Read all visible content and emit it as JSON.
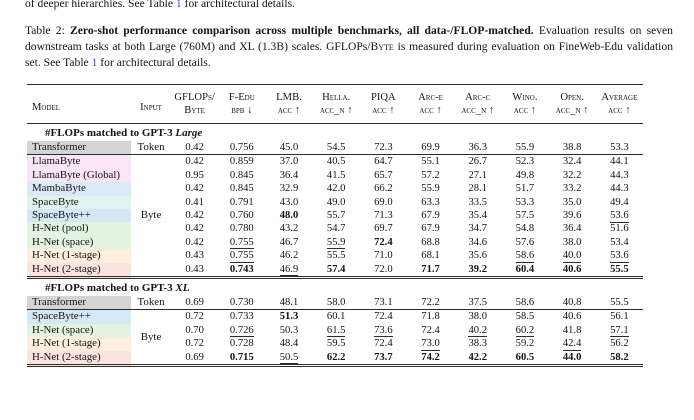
{
  "link_color": "#3355c8",
  "colors": {
    "gray": "#d4d4d4",
    "pink": "#fae5f6",
    "blue1": "#dceaf8",
    "teal": "#e1f3ee",
    "blue2": "#d6e8f5",
    "green": "#e2f3e0",
    "orange": "#fdeedd",
    "red": "#fbe3e0"
  },
  "body_text": {
    "line": [
      {
        "t": "of deeper hierarchies. See Table ",
        "s": ""
      },
      {
        "t": "1",
        "s": "link"
      },
      {
        "t": " for architectural details.",
        "s": ""
      }
    ]
  },
  "caption": {
    "segments": [
      {
        "t": "Table 2: ",
        "s": ""
      },
      {
        "t": "Zero-shot performance comparison across multiple benchmarks, all data-/FLOP-matched.",
        "s": "bold"
      },
      {
        "t": " Evaluation results on seven downstream tasks at both Large (760M) and XL (1.3B) scales. GFLOPs/",
        "s": ""
      },
      {
        "t": "Byte",
        "s": "sc"
      },
      {
        "t": " is measured during evaluation on FineWeb-Edu validation set. See Table ",
        "s": ""
      },
      {
        "t": "1",
        "s": "link"
      },
      {
        "t": " for architectural details.",
        "s": ""
      }
    ]
  },
  "table": {
    "header": {
      "model": "Model",
      "input": "Input",
      "metrics": [
        [
          "GFLOPs/",
          "Byte"
        ],
        [
          "F-Edu",
          "bpb ↓"
        ],
        [
          "LMB.",
          "acc ↑"
        ],
        [
          "Hella.",
          "acc_n ↑"
        ],
        [
          "PIQA",
          "acc ↑"
        ],
        [
          "Arc-e",
          "acc ↑"
        ],
        [
          "Arc-c",
          "acc_n ↑"
        ],
        [
          "Wino.",
          "acc ↑"
        ],
        [
          "Open.",
          "acc_n ↑"
        ],
        [
          "Average",
          "acc ↑"
        ]
      ]
    },
    "sections": [
      {
        "title_prefix": "#FLOPs matched to GPT-3 ",
        "title_em": "Large",
        "rows": [
          {
            "model": "Transformer",
            "color": "gray",
            "input": "Token",
            "input_rowspan": 1,
            "rule_below": true,
            "cells": [
              [
                "0.42",
                ""
              ],
              [
                "0.756",
                ""
              ],
              [
                "45.0",
                ""
              ],
              [
                "54.5",
                ""
              ],
              [
                "72.3",
                "u"
              ],
              [
                "69.9",
                "u"
              ],
              [
                "36.3",
                "u"
              ],
              [
                "55.9",
                ""
              ],
              [
                "38.8",
                ""
              ],
              [
                "53.3",
                ""
              ]
            ]
          },
          {
            "model": "LlamaByte",
            "color": "pink",
            "input": "Byte",
            "input_rowspan": 9,
            "cells": [
              [
                "0.42",
                ""
              ],
              [
                "0.859",
                ""
              ],
              [
                "37.0",
                ""
              ],
              [
                "40.5",
                ""
              ],
              [
                "64.7",
                ""
              ],
              [
                "55.1",
                ""
              ],
              [
                "26.7",
                ""
              ],
              [
                "52.3",
                ""
              ],
              [
                "32.4",
                ""
              ],
              [
                "44.1",
                ""
              ]
            ]
          },
          {
            "model": "LlamaByte (Global)",
            "color": "pink",
            "cells": [
              [
                "0.95",
                ""
              ],
              [
                "0.845",
                ""
              ],
              [
                "36.4",
                ""
              ],
              [
                "41.5",
                ""
              ],
              [
                "65.7",
                ""
              ],
              [
                "57.2",
                ""
              ],
              [
                "27.1",
                ""
              ],
              [
                "49.8",
                ""
              ],
              [
                "32.2",
                ""
              ],
              [
                "44.3",
                ""
              ]
            ]
          },
          {
            "model": "MambaByte",
            "color": "blue1",
            "cells": [
              [
                "0.42",
                ""
              ],
              [
                "0.845",
                ""
              ],
              [
                "32.9",
                ""
              ],
              [
                "42.0",
                ""
              ],
              [
                "66.2",
                ""
              ],
              [
                "55.9",
                ""
              ],
              [
                "28.1",
                ""
              ],
              [
                "51.7",
                ""
              ],
              [
                "33.2",
                ""
              ],
              [
                "44.3",
                ""
              ]
            ]
          },
          {
            "model": "SpaceByte",
            "color": "teal",
            "cells": [
              [
                "0.41",
                ""
              ],
              [
                "0.791",
                ""
              ],
              [
                "43.0",
                ""
              ],
              [
                "49.0",
                ""
              ],
              [
                "69.0",
                ""
              ],
              [
                "63.3",
                ""
              ],
              [
                "33.5",
                ""
              ],
              [
                "53.3",
                ""
              ],
              [
                "35.0",
                ""
              ],
              [
                "49.4",
                ""
              ]
            ]
          },
          {
            "model": "SpaceByte++",
            "color": "blue2",
            "cells": [
              [
                "0.42",
                ""
              ],
              [
                "0.760",
                ""
              ],
              [
                "48.0",
                "b"
              ],
              [
                "55.7",
                ""
              ],
              [
                "71.3",
                ""
              ],
              [
                "67.9",
                ""
              ],
              [
                "35.4",
                ""
              ],
              [
                "57.5",
                ""
              ],
              [
                "39.6",
                ""
              ],
              [
                "53.6",
                "u"
              ]
            ]
          },
          {
            "model": "H-Net (pool)",
            "color": "green",
            "cells": [
              [
                "0.42",
                ""
              ],
              [
                "0.780",
                ""
              ],
              [
                "43.2",
                ""
              ],
              [
                "54.7",
                ""
              ],
              [
                "69.7",
                ""
              ],
              [
                "67.9",
                ""
              ],
              [
                "34.7",
                ""
              ],
              [
                "54.8",
                ""
              ],
              [
                "36.4",
                ""
              ],
              [
                "51.6",
                ""
              ]
            ]
          },
          {
            "model": "H-Net (space)",
            "color": "green",
            "cells": [
              [
                "0.42",
                ""
              ],
              [
                "0.755",
                "u"
              ],
              [
                "46.7",
                ""
              ],
              [
                "55.9",
                "u"
              ],
              [
                "72.4",
                "b"
              ],
              [
                "68.8",
                ""
              ],
              [
                "34.6",
                ""
              ],
              [
                "57.6",
                ""
              ],
              [
                "38.0",
                ""
              ],
              [
                "53.4",
                ""
              ]
            ]
          },
          {
            "model": "H-Net (1-stage)",
            "color": "orange",
            "cells": [
              [
                "0.43",
                ""
              ],
              [
                "0.755",
                "u"
              ],
              [
                "46.2",
                ""
              ],
              [
                "55.5",
                ""
              ],
              [
                "71.0",
                ""
              ],
              [
                "68.1",
                ""
              ],
              [
                "35.6",
                ""
              ],
              [
                "58.6",
                "u"
              ],
              [
                "40.0",
                "u"
              ],
              [
                "53.6",
                "u"
              ]
            ]
          },
          {
            "model": "H-Net (2-stage)",
            "color": "red",
            "cells": [
              [
                "0.43",
                ""
              ],
              [
                "0.743",
                "b"
              ],
              [
                "46.9",
                "u"
              ],
              [
                "57.4",
                "b"
              ],
              [
                "72.0",
                ""
              ],
              [
                "71.7",
                "b"
              ],
              [
                "39.2",
                "b"
              ],
              [
                "60.4",
                "b"
              ],
              [
                "40.6",
                "b"
              ],
              [
                "55.5",
                "b"
              ]
            ]
          }
        ]
      },
      {
        "title_prefix": "#FLOPs matched to GPT-3 ",
        "title_em": "XL",
        "rows": [
          {
            "model": "Transformer",
            "color": "gray",
            "input": "Token",
            "input_rowspan": 1,
            "rule_below": true,
            "cells": [
              [
                "0.69",
                ""
              ],
              [
                "0.730",
                ""
              ],
              [
                "48.1",
                ""
              ],
              [
                "58.0",
                ""
              ],
              [
                "73.1",
                ""
              ],
              [
                "72.2",
                ""
              ],
              [
                "37.5",
                ""
              ],
              [
                "58.6",
                ""
              ],
              [
                "40.8",
                ""
              ],
              [
                "55.5",
                ""
              ]
            ]
          },
          {
            "model": "SpaceByte++",
            "color": "blue2",
            "input": "Byte",
            "input_rowspan": 4,
            "cells": [
              [
                "0.72",
                ""
              ],
              [
                "0.733",
                ""
              ],
              [
                "51.3",
                "b"
              ],
              [
                "60.1",
                ""
              ],
              [
                "72.4",
                ""
              ],
              [
                "71.8",
                ""
              ],
              [
                "38.0",
                ""
              ],
              [
                "58.5",
                ""
              ],
              [
                "40.6",
                ""
              ],
              [
                "56.1",
                ""
              ]
            ]
          },
          {
            "model": "H-Net (space)",
            "color": "green",
            "cells": [
              [
                "0.70",
                ""
              ],
              [
                "0.726",
                "u"
              ],
              [
                "50.3",
                ""
              ],
              [
                "61.5",
                "u"
              ],
              [
                "73.6",
                "u"
              ],
              [
                "72.4",
                ""
              ],
              [
                "40.2",
                "u"
              ],
              [
                "60.2",
                "u"
              ],
              [
                "41.8",
                ""
              ],
              [
                "57.1",
                "u"
              ]
            ]
          },
          {
            "model": "H-Net (1-stage)",
            "color": "orange",
            "cells": [
              [
                "0.72",
                ""
              ],
              [
                "0.728",
                ""
              ],
              [
                "48.4",
                ""
              ],
              [
                "59.5",
                ""
              ],
              [
                "72.4",
                ""
              ],
              [
                "73.0",
                "u"
              ],
              [
                "38.3",
                ""
              ],
              [
                "59.2",
                ""
              ],
              [
                "42.4",
                "u"
              ],
              [
                "56.2",
                ""
              ]
            ]
          },
          {
            "model": "H-Net (2-stage)",
            "color": "red",
            "cells": [
              [
                "0.69",
                ""
              ],
              [
                "0.715",
                "b"
              ],
              [
                "50.5",
                "u"
              ],
              [
                "62.2",
                "b"
              ],
              [
                "73.7",
                "b"
              ],
              [
                "74.2",
                "b"
              ],
              [
                "42.2",
                "b"
              ],
              [
                "60.5",
                "b"
              ],
              [
                "44.0",
                "b"
              ],
              [
                "58.2",
                "b"
              ]
            ]
          }
        ]
      }
    ]
  }
}
